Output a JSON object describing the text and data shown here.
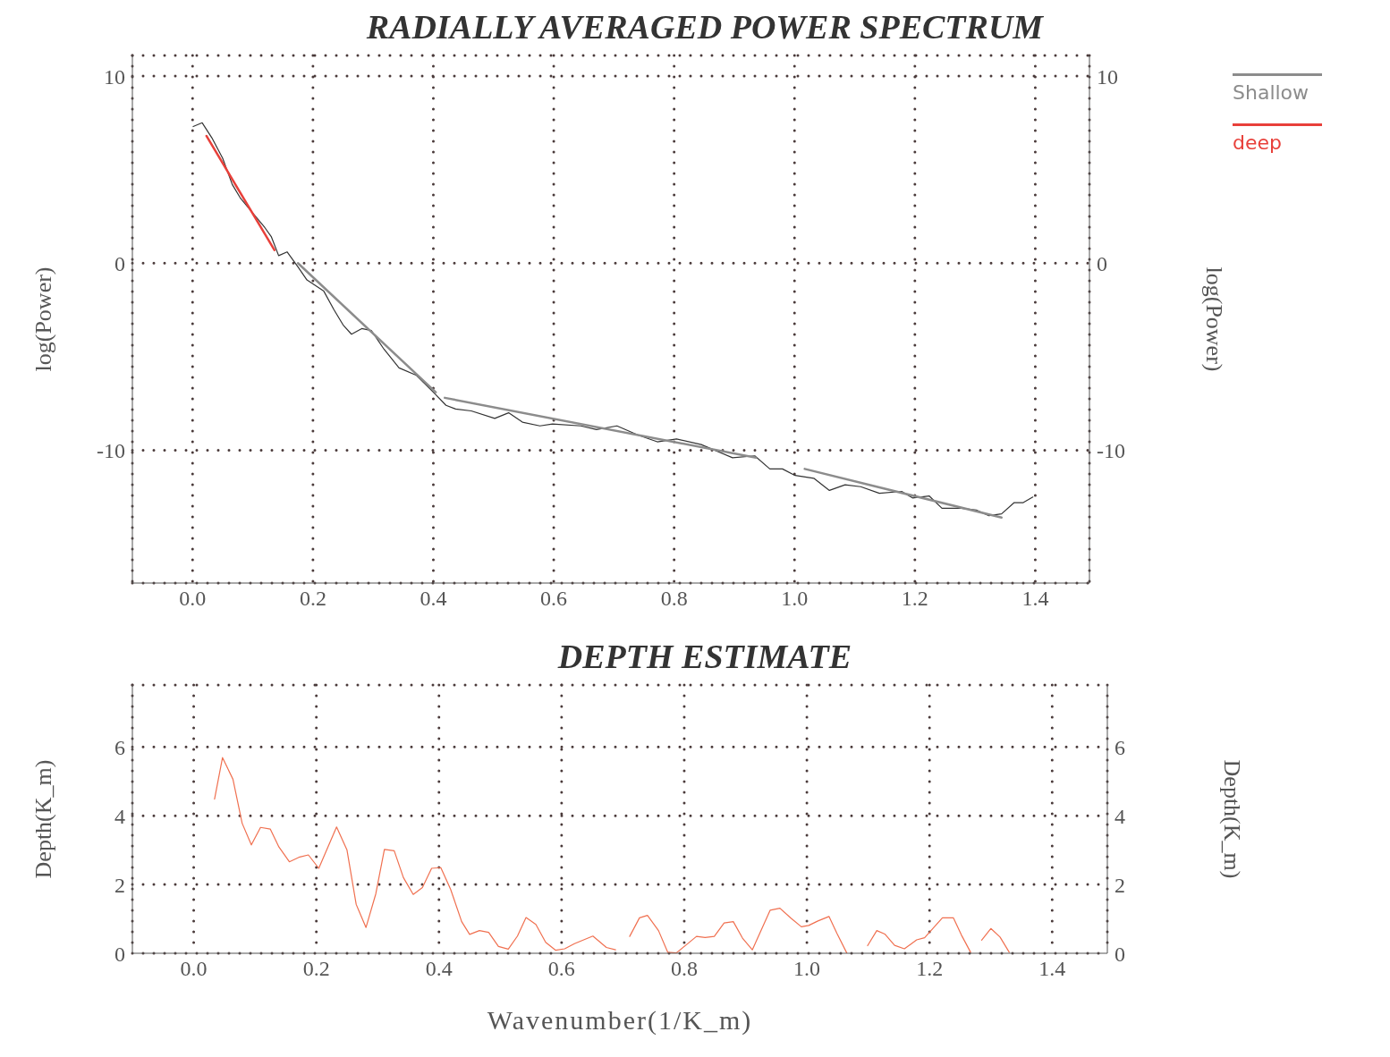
{
  "chart_data": [
    {
      "type": "line",
      "title": "RADIALLY AVERAGED POWER SPECTRUM",
      "ylabel": "log(Power)",
      "y2label": "log(Power)",
      "xlim": [
        -0.1,
        1.49
      ],
      "ylim": [
        -17.1,
        11.1
      ],
      "y2lim": [
        -17.1,
        11.1
      ],
      "xticks": [
        {
          "value": 0,
          "label": "0.0"
        },
        {
          "value": 0.2,
          "label": "0.2"
        },
        {
          "value": 0.4,
          "label": "0.4"
        },
        {
          "value": 0.6,
          "label": "0.6"
        },
        {
          "value": 0.8,
          "label": "0.8"
        },
        {
          "value": 1,
          "label": "1.0"
        },
        {
          "value": 1.2,
          "label": "1.2"
        },
        {
          "value": 1.4,
          "label": "1.4"
        }
      ],
      "yticks": [
        -10,
        0,
        10
      ],
      "y2ticks": [
        -10,
        0,
        10
      ],
      "grid": true,
      "legend": "right",
      "line_style": "solid",
      "series": [
        {
          "color": "#333333",
          "x": [
            0.001,
            0.016,
            0.032,
            0.05,
            0.066,
            0.079,
            0.102,
            0.12,
            0.131,
            0.143,
            0.157,
            0.175,
            0.19,
            0.204,
            0.218,
            0.235,
            0.25,
            0.264,
            0.281,
            0.297,
            0.318,
            0.343,
            0.372,
            0.403,
            0.421,
            0.437,
            0.463,
            0.502,
            0.525,
            0.548,
            0.577,
            0.598,
            0.645,
            0.671,
            0.705,
            0.741,
            0.772,
            0.804,
            0.845,
            0.897,
            0.934,
            0.959,
            0.98,
            1.001,
            1.032,
            1.058,
            1.084,
            1.11,
            1.141,
            1.178,
            1.196,
            1.224,
            1.245,
            1.277,
            1.302,
            1.323,
            1.344,
            1.365,
            1.38,
            1.396
          ],
          "values": [
            7.3,
            7.5,
            6.7,
            5.6,
            4.2,
            3.5,
            2.6,
            1.9,
            1.4,
            0.4,
            0.6,
            -0.2,
            -0.9,
            -1.2,
            -1.5,
            -2.5,
            -3.3,
            -3.8,
            -3.5,
            -3.6,
            -4.6,
            -5.6,
            -6.0,
            -7.0,
            -7.6,
            -7.8,
            -7.9,
            -8.3,
            -8.0,
            -8.5,
            -8.7,
            -8.6,
            -8.7,
            -8.9,
            -8.7,
            -9.2,
            -9.55,
            -9.4,
            -9.7,
            -10.4,
            -10.3,
            -11.0,
            -11.0,
            -11.35,
            -11.5,
            -12.15,
            -11.85,
            -11.95,
            -12.3,
            -12.2,
            -12.55,
            -12.45,
            -13.1,
            -13.1,
            -13.2,
            -13.5,
            -13.4,
            -12.8,
            -12.8,
            -12.5
          ]
        },
        {
          "name": "Shallow",
          "color": "#8c8c8c",
          "x": [
            0.175,
            0.404,
            0.41,
            0.419,
            0.936,
            0.97,
            1.017,
            1.344
          ],
          "values": [
            0.0,
            -6.9,
            null,
            -7.2,
            -10.4,
            null,
            -11.0,
            -13.6
          ]
        },
        {
          "name": "deep",
          "color": "#e8403a",
          "x": [
            0.023,
            0.136
          ],
          "values": [
            6.8,
            0.7
          ]
        }
      ]
    },
    {
      "type": "line",
      "title": "DEPTH ESTIMATE",
      "xlabel": "Wavenumber(1/K_m)",
      "ylabel": "Depth(K_m)",
      "y2label": "Depth(K_m)",
      "xlim": [
        -0.1,
        1.49
      ],
      "ylim": [
        0,
        7.8
      ],
      "y2lim": [
        0,
        7.8
      ],
      "xticks": [
        {
          "value": 0,
          "label": "0.0"
        },
        {
          "value": 0.2,
          "label": "0.2"
        },
        {
          "value": 0.4,
          "label": "0.4"
        },
        {
          "value": 0.6,
          "label": "0.6"
        },
        {
          "value": 0.8,
          "label": "0.8"
        },
        {
          "value": 1,
          "label": "1.0"
        },
        {
          "value": 1.2,
          "label": "1.2"
        },
        {
          "value": 1.4,
          "label": "1.4"
        }
      ],
      "yticks": [
        0,
        2,
        4,
        6
      ],
      "y2ticks": [
        0,
        2,
        4,
        6
      ],
      "grid": true,
      "line_style": "solid",
      "series": [
        {
          "color": "#f07050",
          "x": [
            0.034,
            0.047,
            0.064,
            0.079,
            0.094,
            0.109,
            0.125,
            0.139,
            0.156,
            0.173,
            0.187,
            0.204,
            0.233,
            0.25,
            0.265,
            0.281,
            0.297,
            0.311,
            0.327,
            0.342,
            0.358,
            0.373,
            0.388,
            0.403,
            0.419,
            0.437,
            0.45,
            0.466,
            0.481,
            0.497,
            0.513,
            0.528,
            0.542,
            0.558,
            0.574,
            0.59,
            0.605,
            0.621,
            0.651,
            0.673,
            0.688,
            0.7,
            0.711,
            0.727,
            0.74,
            0.758,
            0.773,
            0.787,
            0.805,
            0.82,
            0.834,
            0.849,
            0.865,
            0.88,
            0.895,
            0.911,
            0.94,
            0.956,
            0.974,
            0.991,
            1.003,
            1.018,
            1.036,
            1.049,
            1.065,
            1.08,
            1.099,
            1.114,
            1.127,
            1.143,
            1.159,
            1.179,
            1.192,
            1.221,
            1.239,
            1.252,
            1.267,
            1.276,
            1.285,
            1.3,
            1.315,
            1.33
          ],
          "values": [
            4.48,
            5.69,
            5.06,
            3.78,
            3.15,
            3.66,
            3.61,
            3.09,
            2.66,
            2.8,
            2.86,
            2.47,
            3.67,
            3.0,
            1.42,
            0.75,
            1.73,
            3.02,
            2.98,
            2.2,
            1.71,
            1.91,
            2.47,
            2.49,
            1.86,
            0.92,
            0.55,
            0.66,
            0.61,
            0.2,
            0.12,
            0.5,
            1.04,
            0.84,
            0.32,
            0.09,
            0.13,
            0.28,
            0.5,
            0.17,
            0.1,
            null,
            0.49,
            1.03,
            1.1,
            0.66,
            0.03,
            0.01,
            0.27,
            0.49,
            0.46,
            0.49,
            0.88,
            0.92,
            0.44,
            0.1,
            1.25,
            1.31,
            1.02,
            0.77,
            0.81,
            0.94,
            1.07,
            0.58,
            0.01,
            null,
            0.22,
            0.66,
            0.56,
            0.23,
            0.13,
            0.39,
            0.45,
            1.03,
            1.03,
            0.53,
            0.03,
            null,
            0.38,
            0.72,
            0.47,
            0.03
          ]
        }
      ]
    }
  ]
}
